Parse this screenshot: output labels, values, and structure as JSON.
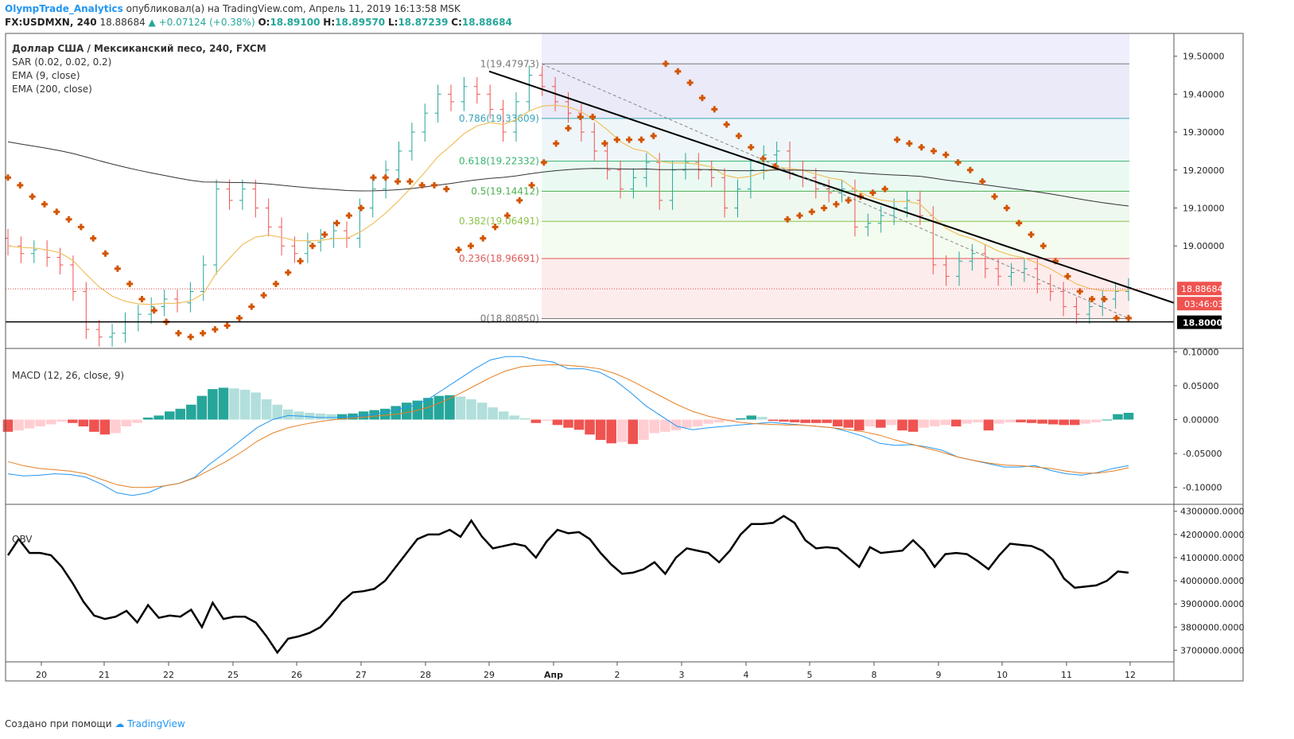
{
  "header": {
    "author": "OlympTrade_Analytics",
    "published": "опубликовал(а) на TradingView.com, Апрель 11, 2019 16:13:58 MSK",
    "symbol": "FX:USDMXN, 240",
    "last": "18.88684",
    "change": "▲ +0.07124 (+0.38%)",
    "o_label": "O:",
    "o": "18.89100",
    "h_label": "H:",
    "h": "18.89570",
    "l_label": "L:",
    "l": "18.87239",
    "c_label": "C:",
    "c": "18.88684"
  },
  "legend": {
    "title": "Доллар США / Мексиканский песо, 240, FXCM",
    "sar": "SAR (0.02, 0.02, 0.2)",
    "ema9": "EMA (9, close)",
    "ema200": "EMA (200, close)",
    "macd": "MACD (12, 26, close, 9)",
    "obv": "OBV"
  },
  "footer": {
    "created": "Создано при помощи",
    "brand": "TradingView"
  },
  "colors": {
    "up": "#26a69a",
    "down": "#ef5350",
    "sar": "#d35400",
    "ema9": "#f0c060",
    "ema200": "#333333",
    "macd": "#2196f3",
    "signal": "#e67e22",
    "obv": "#000000",
    "hist_up_strong": "#26a69a",
    "hist_up_weak": "#b2dfdb",
    "hist_down_strong": "#ef5350",
    "hist_down_weak": "#ffcdd2"
  },
  "chart_data": [
    {
      "type": "candlestick",
      "name": "price",
      "ylim": [
        18.73,
        19.56
      ],
      "y_ticks": [
        "19.50000",
        "19.40000",
        "19.30000",
        "19.20000",
        "19.10000",
        "19.00000",
        "18.80000"
      ],
      "x_ticks": [
        "20",
        "21",
        "22",
        "25",
        "26",
        "27",
        "28",
        "29",
        "Апр",
        "2",
        "3",
        "4",
        "5",
        "8",
        "9",
        "10",
        "11",
        "12"
      ],
      "last_price_label": "18.88684",
      "countdown_label": "03:46:03",
      "support_label": "18.80000",
      "support_level": 18.8,
      "fibonacci": [
        {
          "label": "1(19.47973)",
          "value": 19.47973,
          "color": "#787878"
        },
        {
          "label": "0.786(19.33609)",
          "value": 19.33609,
          "color": "#3aa6b9"
        },
        {
          "label": "0.618(19.22332)",
          "value": 19.22332,
          "color": "#3cb371"
        },
        {
          "label": "0.5(19.14412)",
          "value": 19.14412,
          "color": "#4caf50"
        },
        {
          "label": "0.382(19.06491)",
          "value": 19.06491,
          "color": "#8bc34a"
        },
        {
          "label": "0.236(18.96691)",
          "value": 18.96691,
          "color": "#e05a5a"
        },
        {
          "label": "0(18.80850)",
          "value": 18.8085,
          "color": "#787878"
        }
      ],
      "close": [
        19.0,
        18.98,
        18.99,
        18.97,
        18.95,
        18.88,
        18.78,
        18.76,
        18.77,
        18.8,
        18.82,
        18.84,
        18.86,
        18.85,
        18.88,
        18.95,
        19.15,
        19.12,
        19.15,
        19.1,
        19.05,
        19.0,
        18.98,
        19.01,
        19.02,
        19.04,
        19.02,
        19.1,
        19.15,
        19.2,
        19.25,
        19.3,
        19.35,
        19.4,
        19.38,
        19.42,
        19.4,
        19.36,
        19.3,
        19.38,
        19.45,
        19.42,
        19.38,
        19.35,
        19.3,
        19.25,
        19.2,
        19.15,
        19.18,
        19.22,
        19.12,
        19.2,
        19.22,
        19.2,
        19.18,
        19.1,
        19.15,
        19.2,
        19.24,
        19.25,
        19.2,
        19.18,
        19.15,
        19.14,
        19.15,
        19.05,
        19.06,
        19.08,
        19.1,
        19.12,
        19.08,
        18.95,
        18.92,
        18.96,
        18.98,
        18.94,
        18.92,
        18.93,
        18.94,
        18.9,
        18.88,
        18.84,
        18.82,
        18.84,
        18.86,
        18.88,
        18.89
      ],
      "sar": [
        19.18,
        19.16,
        19.13,
        19.11,
        19.09,
        19.07,
        19.05,
        19.02,
        18.98,
        18.94,
        18.9,
        18.86,
        18.83,
        18.8,
        18.77,
        18.76,
        18.77,
        18.78,
        18.79,
        18.81,
        18.84,
        18.87,
        18.9,
        18.93,
        18.96,
        19.0,
        19.03,
        19.06,
        19.08,
        19.1,
        19.18,
        19.18,
        19.17,
        19.17,
        19.16,
        19.16,
        19.15,
        18.99,
        19.0,
        19.02,
        19.05,
        19.08,
        19.12,
        19.16,
        19.22,
        19.27,
        19.31,
        19.34,
        19.34,
        19.27,
        19.28,
        19.28,
        19.28,
        19.29,
        19.48,
        19.46,
        19.43,
        19.39,
        19.36,
        19.32,
        19.29,
        19.26,
        19.23,
        19.21,
        19.07,
        19.08,
        19.09,
        19.1,
        19.11,
        19.12,
        19.13,
        19.14,
        19.15,
        19.28,
        19.27,
        19.26,
        19.25,
        19.24,
        19.22,
        19.2,
        19.17,
        19.13,
        19.1,
        19.06,
        19.03,
        19.0,
        18.96,
        18.92,
        18.88,
        18.86,
        18.86,
        18.81,
        18.81
      ]
    },
    {
      "type": "bar",
      "name": "MACD",
      "ylim": [
        -0.125,
        0.105
      ],
      "y_ticks": [
        "0.10000",
        "0.05000",
        "0.00000",
        "-0.05000",
        "-0.10000"
      ],
      "macd": [
        -0.08,
        -0.083,
        -0.082,
        -0.08,
        -0.081,
        -0.085,
        -0.095,
        -0.108,
        -0.112,
        -0.108,
        -0.098,
        -0.094,
        -0.085,
        -0.065,
        -0.048,
        -0.03,
        -0.012,
        0.0,
        0.006,
        0.005,
        0.003,
        0.003,
        0.004,
        0.006,
        0.01,
        0.015,
        0.02,
        0.03,
        0.045,
        0.06,
        0.075,
        0.088,
        0.093,
        0.093,
        0.088,
        0.085,
        0.075,
        0.075,
        0.07,
        0.058,
        0.04,
        0.02,
        0.005,
        -0.01,
        -0.015,
        -0.012,
        -0.01,
        -0.008,
        -0.006,
        -0.004,
        -0.006,
        -0.008,
        -0.01,
        -0.012,
        -0.018,
        -0.025,
        -0.035,
        -0.038,
        -0.037,
        -0.04,
        -0.045,
        -0.055,
        -0.06,
        -0.065,
        -0.07,
        -0.07,
        -0.068,
        -0.075,
        -0.08,
        -0.082,
        -0.078,
        -0.072,
        -0.068
      ],
      "signal": [
        -0.062,
        -0.068,
        -0.072,
        -0.074,
        -0.076,
        -0.08,
        -0.088,
        -0.096,
        -0.1,
        -0.1,
        -0.098,
        -0.094,
        -0.086,
        -0.074,
        -0.062,
        -0.048,
        -0.032,
        -0.02,
        -0.012,
        -0.007,
        -0.003,
        0.0,
        0.002,
        0.004,
        0.006,
        0.008,
        0.012,
        0.018,
        0.027,
        0.038,
        0.05,
        0.062,
        0.072,
        0.078,
        0.08,
        0.081,
        0.08,
        0.078,
        0.075,
        0.068,
        0.058,
        0.046,
        0.034,
        0.022,
        0.012,
        0.005,
        0.0,
        -0.004,
        -0.006,
        -0.007,
        -0.008,
        -0.008,
        -0.01,
        -0.012,
        -0.015,
        -0.018,
        -0.023,
        -0.03,
        -0.036,
        -0.042,
        -0.048,
        -0.055,
        -0.06,
        -0.064,
        -0.067,
        -0.068,
        -0.07,
        -0.072,
        -0.076,
        -0.079,
        -0.079,
        -0.076,
        -0.071
      ],
      "histogram": [
        -0.018,
        -0.016,
        -0.013,
        -0.01,
        -0.007,
        -0.003,
        -0.005,
        -0.01,
        -0.018,
        -0.022,
        -0.02,
        -0.01,
        -0.005,
        0.003,
        0.006,
        0.012,
        0.016,
        0.022,
        0.035,
        0.045,
        0.047,
        0.046,
        0.044,
        0.04,
        0.03,
        0.022,
        0.015,
        0.012,
        0.01,
        0.009,
        0.008,
        0.008,
        0.009,
        0.012,
        0.014,
        0.016,
        0.02,
        0.025,
        0.028,
        0.032,
        0.035,
        0.036,
        0.034,
        0.03,
        0.025,
        0.018,
        0.012,
        0.006,
        0.002,
        -0.005,
        -0.002,
        -0.008,
        -0.012,
        -0.015,
        -0.022,
        -0.03,
        -0.035,
        -0.033,
        -0.036,
        -0.03,
        -0.02,
        -0.018,
        -0.016,
        -0.012,
        -0.01,
        -0.006,
        -0.004,
        -0.002,
        0.002,
        0.006,
        0.004,
        -0.002,
        -0.003,
        -0.004,
        -0.005,
        -0.005,
        -0.005,
        -0.01,
        -0.012,
        -0.016,
        -0.01,
        -0.012,
        -0.008,
        -0.016,
        -0.018,
        -0.012,
        -0.01,
        -0.008,
        -0.01,
        -0.006,
        -0.004,
        -0.016,
        -0.006,
        -0.004,
        -0.004,
        -0.005,
        -0.006,
        -0.007,
        -0.008,
        -0.008,
        -0.006,
        -0.004,
        0.0,
        0.008,
        0.01
      ]
    },
    {
      "type": "line",
      "name": "OBV",
      "ylim": [
        3650000,
        4330000
      ],
      "y_ticks": [
        "4300000.0000",
        "4200000.0000",
        "4100000.0000",
        "4000000.0000",
        "3900000.0000",
        "3800000.0000",
        "3700000.0000"
      ],
      "values": [
        4110000,
        4180000,
        4120000,
        4120000,
        4110000,
        4060000,
        3990000,
        3910000,
        3850000,
        3835000,
        3845000,
        3870000,
        3820000,
        3895000,
        3840000,
        3850000,
        3845000,
        3875000,
        3800000,
        3905000,
        3835000,
        3845000,
        3845000,
        3820000,
        3760000,
        3690000,
        3750000,
        3760000,
        3775000,
        3800000,
        3850000,
        3910000,
        3950000,
        3955000,
        3965000,
        4000000,
        4060000,
        4120000,
        4180000,
        4200000,
        4200000,
        4220000,
        4190000,
        4260000,
        4190000,
        4140000,
        4150000,
        4160000,
        4150000,
        4100000,
        4170000,
        4220000,
        4205000,
        4210000,
        4180000,
        4120000,
        4070000,
        4030000,
        4035000,
        4050000,
        4080000,
        4030000,
        4100000,
        4140000,
        4130000,
        4120000,
        4080000,
        4130000,
        4200000,
        4245000,
        4245000,
        4250000,
        4280000,
        4250000,
        4175000,
        4140000,
        4145000,
        4140000,
        4100000,
        4060000,
        4145000,
        4120000,
        4125000,
        4130000,
        4175000,
        4130000,
        4060000,
        4115000,
        4120000,
        4115000,
        4085000,
        4050000,
        4110000,
        4160000,
        4155000,
        4150000,
        4130000,
        4090000,
        4010000,
        3970000,
        3975000,
        3980000,
        4000000,
        4040000,
        4035000
      ]
    }
  ]
}
